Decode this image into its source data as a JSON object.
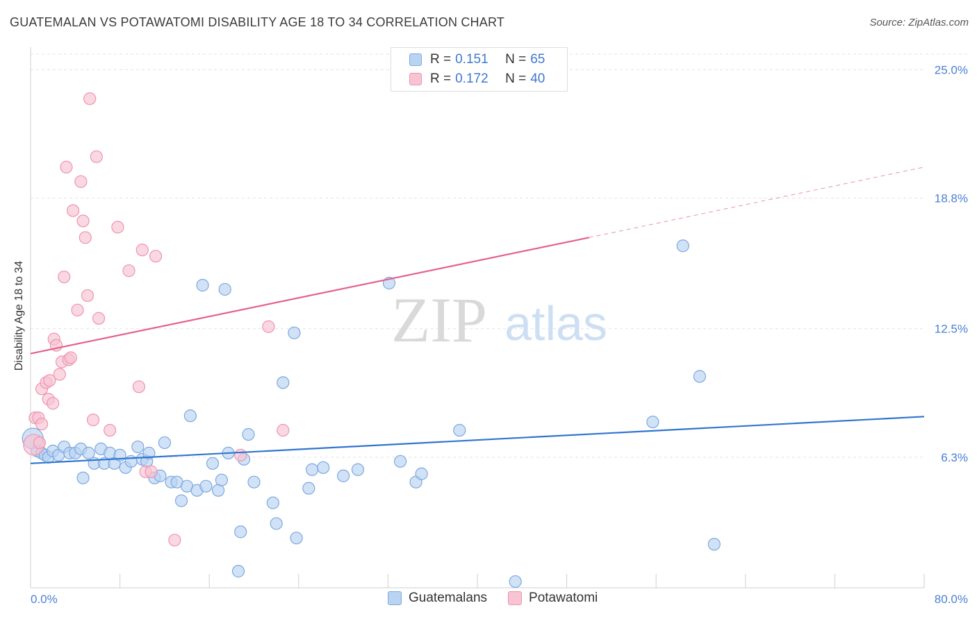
{
  "header": {
    "title": "GUATEMALAN VS POTAWATOMI DISABILITY AGE 18 TO 34 CORRELATION CHART",
    "source": "Source: ZipAtlas.com"
  },
  "legend": {
    "rows": [
      {
        "r_label": "R =",
        "r_value": "0.151",
        "n_label": "N =",
        "n_value": "65"
      },
      {
        "r_label": "R =",
        "r_value": "0.172",
        "n_label": "N =",
        "n_value": "40"
      }
    ]
  },
  "bottom_legend": {
    "guatemalans": "Guatemalans",
    "potawatomi": "Potawatomi"
  },
  "watermark": {
    "zip": "ZIP",
    "atlas": "atlas"
  },
  "colors": {
    "blue_fill": "#b9d3f2",
    "blue_stroke": "#7aa8e0",
    "blue_line": "#2f74d0",
    "pink_fill": "#f8c3d3",
    "pink_stroke": "#ee93b0",
    "pink_line": "#e4608e",
    "tick_text": "#4a7fd4"
  },
  "chart_data": {
    "type": "scatter",
    "title": "GUATEMALAN VS POTAWATOMI DISABILITY AGE 18 TO 34 CORRELATION CHART",
    "ylabel": "Disability Age 18 to 34",
    "xlim": [
      0,
      80
    ],
    "ylim": [
      0,
      25.75
    ],
    "x_tick_labels": [
      "0.0%",
      "80.0%"
    ],
    "y_ticks": [
      6.3,
      12.5,
      18.8,
      25.0
    ],
    "y_tick_labels": [
      "6.3%",
      "12.5%",
      "18.8%",
      "25.0%"
    ],
    "grid": true,
    "legend_position": "top-center",
    "series": [
      {
        "name": "Guatemalans",
        "r": 0.151,
        "n": 65,
        "trend": {
          "x": [
            0,
            80
          ],
          "y": [
            6.0,
            8.26
          ]
        },
        "points": [
          {
            "x": 0.2,
            "y": 7.2,
            "big": true
          },
          {
            "x": 0.6,
            "y": 6.6
          },
          {
            "x": 1.0,
            "y": 6.5
          },
          {
            "x": 1.3,
            "y": 6.4
          },
          {
            "x": 1.6,
            "y": 6.3
          },
          {
            "x": 2.0,
            "y": 6.6
          },
          {
            "x": 2.5,
            "y": 6.4
          },
          {
            "x": 3.0,
            "y": 6.8
          },
          {
            "x": 3.5,
            "y": 6.5
          },
          {
            "x": 4.0,
            "y": 6.5
          },
          {
            "x": 4.5,
            "y": 6.7
          },
          {
            "x": 4.7,
            "y": 5.3
          },
          {
            "x": 5.2,
            "y": 6.5
          },
          {
            "x": 5.7,
            "y": 6.0
          },
          {
            "x": 6.3,
            "y": 6.7
          },
          {
            "x": 6.6,
            "y": 6.0
          },
          {
            "x": 7.1,
            "y": 6.5
          },
          {
            "x": 7.5,
            "y": 6.0
          },
          {
            "x": 8.0,
            "y": 6.4
          },
          {
            "x": 8.5,
            "y": 5.8
          },
          {
            "x": 9.0,
            "y": 6.1
          },
          {
            "x": 9.6,
            "y": 6.8
          },
          {
            "x": 10.0,
            "y": 6.2
          },
          {
            "x": 10.4,
            "y": 6.1
          },
          {
            "x": 10.6,
            "y": 6.5
          },
          {
            "x": 11.1,
            "y": 5.3
          },
          {
            "x": 11.6,
            "y": 5.4
          },
          {
            "x": 12.0,
            "y": 7.0
          },
          {
            "x": 12.6,
            "y": 5.1
          },
          {
            "x": 13.1,
            "y": 5.1
          },
          {
            "x": 13.5,
            "y": 4.2
          },
          {
            "x": 14.0,
            "y": 4.9
          },
          {
            "x": 14.3,
            "y": 8.3
          },
          {
            "x": 14.9,
            "y": 4.7
          },
          {
            "x": 15.4,
            "y": 14.6
          },
          {
            "x": 15.7,
            "y": 4.9
          },
          {
            "x": 16.3,
            "y": 6.0
          },
          {
            "x": 16.8,
            "y": 4.7
          },
          {
            "x": 17.1,
            "y": 5.2
          },
          {
            "x": 17.4,
            "y": 14.4
          },
          {
            "x": 17.7,
            "y": 6.5
          },
          {
            "x": 18.6,
            "y": 0.8
          },
          {
            "x": 18.8,
            "y": 2.7
          },
          {
            "x": 19.1,
            "y": 6.2
          },
          {
            "x": 19.5,
            "y": 7.4
          },
          {
            "x": 20.0,
            "y": 5.1
          },
          {
            "x": 21.7,
            "y": 4.1
          },
          {
            "x": 22.0,
            "y": 3.1
          },
          {
            "x": 22.6,
            "y": 9.9
          },
          {
            "x": 23.6,
            "y": 12.3
          },
          {
            "x": 23.8,
            "y": 2.4
          },
          {
            "x": 24.9,
            "y": 4.8
          },
          {
            "x": 25.2,
            "y": 5.7
          },
          {
            "x": 26.2,
            "y": 5.8
          },
          {
            "x": 28.0,
            "y": 5.4
          },
          {
            "x": 29.3,
            "y": 5.7
          },
          {
            "x": 32.1,
            "y": 14.7
          },
          {
            "x": 33.1,
            "y": 6.1
          },
          {
            "x": 34.5,
            "y": 5.1
          },
          {
            "x": 35.0,
            "y": 5.5
          },
          {
            "x": 38.4,
            "y": 7.6
          },
          {
            "x": 43.4,
            "y": 0.3
          },
          {
            "x": 55.7,
            "y": 8.0
          },
          {
            "x": 58.4,
            "y": 16.5
          },
          {
            "x": 59.9,
            "y": 10.2
          },
          {
            "x": 61.2,
            "y": 2.1
          }
        ]
      },
      {
        "name": "Potawatomi",
        "r": 0.172,
        "n": 40,
        "trend": {
          "x": [
            0,
            50
          ],
          "y": [
            11.3,
            16.9
          ]
        },
        "trend_dashed": {
          "x": [
            50,
            80
          ],
          "y": [
            16.9,
            20.3
          ]
        },
        "points": [
          {
            "x": 0.3,
            "y": 6.9,
            "big": true
          },
          {
            "x": 0.4,
            "y": 8.2
          },
          {
            "x": 0.7,
            "y": 8.2
          },
          {
            "x": 0.8,
            "y": 7.0
          },
          {
            "x": 1.0,
            "y": 9.6
          },
          {
            "x": 1.0,
            "y": 7.9
          },
          {
            "x": 1.4,
            "y": 9.9
          },
          {
            "x": 1.6,
            "y": 9.1
          },
          {
            "x": 1.7,
            "y": 10.0
          },
          {
            "x": 2.0,
            "y": 8.9
          },
          {
            "x": 2.1,
            "y": 12.0
          },
          {
            "x": 2.3,
            "y": 11.7
          },
          {
            "x": 2.6,
            "y": 10.3
          },
          {
            "x": 2.8,
            "y": 10.9
          },
          {
            "x": 3.0,
            "y": 15.0
          },
          {
            "x": 3.2,
            "y": 20.3
          },
          {
            "x": 3.4,
            "y": 11.0
          },
          {
            "x": 3.6,
            "y": 11.1
          },
          {
            "x": 3.8,
            "y": 18.2
          },
          {
            "x": 4.2,
            "y": 13.4
          },
          {
            "x": 4.5,
            "y": 19.6
          },
          {
            "x": 4.7,
            "y": 17.7
          },
          {
            "x": 4.9,
            "y": 16.9
          },
          {
            "x": 5.1,
            "y": 14.1
          },
          {
            "x": 5.3,
            "y": 23.6
          },
          {
            "x": 5.6,
            "y": 8.1
          },
          {
            "x": 5.9,
            "y": 20.8
          },
          {
            "x": 6.1,
            "y": 13.0
          },
          {
            "x": 7.1,
            "y": 7.6
          },
          {
            "x": 7.8,
            "y": 17.4
          },
          {
            "x": 8.8,
            "y": 15.3
          },
          {
            "x": 9.7,
            "y": 9.7
          },
          {
            "x": 10.0,
            "y": 16.3
          },
          {
            "x": 10.3,
            "y": 5.6
          },
          {
            "x": 10.8,
            "y": 5.6
          },
          {
            "x": 11.2,
            "y": 16.0
          },
          {
            "x": 12.9,
            "y": 2.3
          },
          {
            "x": 18.8,
            "y": 6.4
          },
          {
            "x": 21.3,
            "y": 12.6
          },
          {
            "x": 22.6,
            "y": 7.6
          }
        ]
      }
    ]
  }
}
